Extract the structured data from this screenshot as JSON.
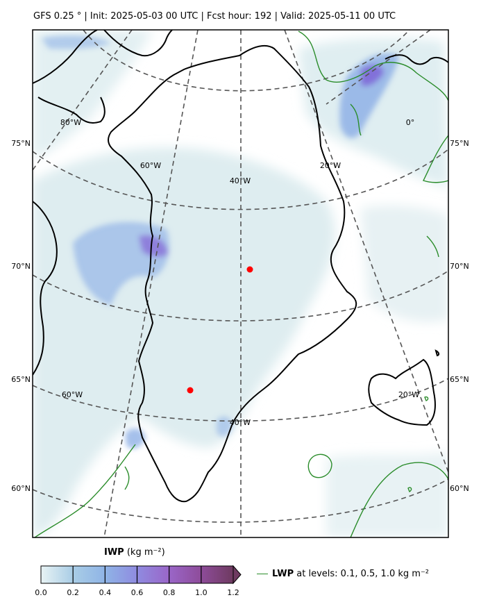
{
  "header": {
    "title": "GFS 0.25$^\\circ$  |  Init: 2025-05-03 00 UTC  |  Fcst hour: 192  |  Valid: 2025-05-11 00 UTC",
    "title_display": "GFS 0.25 °  |  Init: 2025-05-03 00 UTC  |  Fcst hour: 192  |  Valid: 2025-05-11 00 UTC"
  },
  "map": {
    "projection": "polar stereographic (Greenland)",
    "lat_labels_left": [
      "75°N",
      "70°N",
      "65°N",
      "60°N"
    ],
    "lat_labels_right": [
      "75°N",
      "70°N",
      "65°N",
      "60°N"
    ],
    "lon_labels": [
      "80°W",
      "60°W",
      "40°W",
      "20°W",
      "0°",
      "60°W",
      "40°W",
      "20°W"
    ],
    "markers": [
      {
        "name": "station-1",
        "color": "#ff0000"
      },
      {
        "name": "station-2",
        "color": "#ff0000"
      }
    ],
    "colors": {
      "coastline": "#000000",
      "gridline": "#555555",
      "lwp_contour": "#2a8c2a",
      "iwp_light": "#dcedf0",
      "iwp_mid": "#8fb4e6",
      "iwp_high": "#8a70d6"
    }
  },
  "colorbar": {
    "label_bold": "IWP",
    "label_units": " (kg m⁻²)",
    "ticks": [
      "0.0",
      "0.2",
      "0.4",
      "0.6",
      "0.8",
      "1.0",
      "1.2"
    ],
    "colors": [
      "#e8f3f4",
      "#a9cde6",
      "#8fb4e6",
      "#8f8be0",
      "#9a66c8",
      "#8e4c9a",
      "#6e3a60"
    ]
  },
  "legend": {
    "label_bold": "LWP",
    "label_rest": " at levels: 0.1, 0.5, 1.0  kg m⁻²"
  }
}
